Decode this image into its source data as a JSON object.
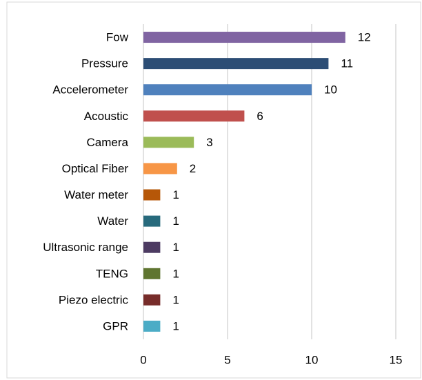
{
  "chart_data": {
    "type": "bar",
    "orientation": "horizontal",
    "categories": [
      "Fow",
      "Pressure",
      "Accelerometer",
      "Acoustic",
      "Camera",
      "Optical Fiber",
      "Water meter",
      "Water",
      "Ultrasonic range",
      "TENG",
      "Piezo electric",
      "GPR"
    ],
    "values": [
      12,
      11,
      10,
      6,
      3,
      2,
      1,
      1,
      1,
      1,
      1,
      1
    ],
    "colors": [
      "#8064a2",
      "#2c4d75",
      "#4f81bd",
      "#c0504d",
      "#9bbb59",
      "#f79646",
      "#b65708",
      "#276a7c",
      "#4d3b62",
      "#5f7530",
      "#772c2a",
      "#4bacc6"
    ],
    "xlim": [
      0,
      15
    ],
    "xticks": [
      0,
      5,
      10,
      15
    ],
    "grid": true,
    "show_value_labels": true
  }
}
